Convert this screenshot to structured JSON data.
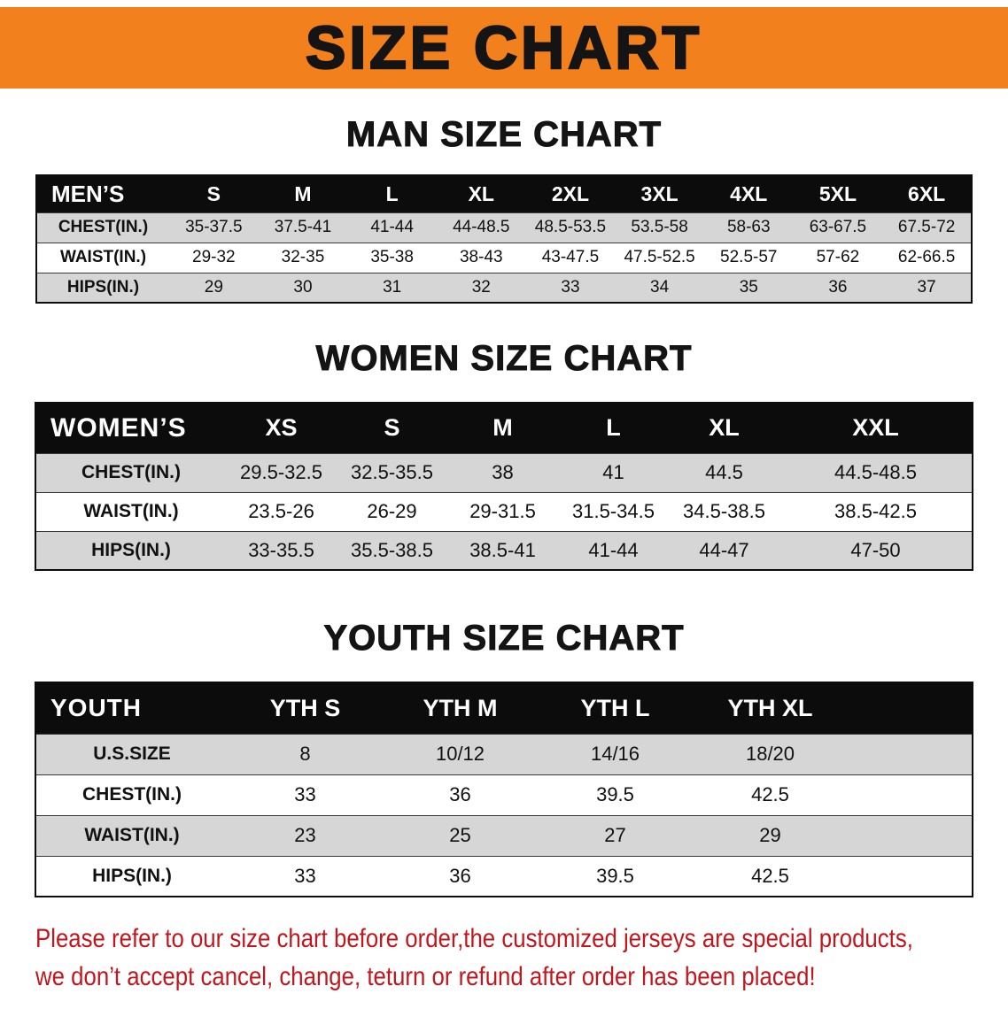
{
  "banner": {
    "title": "SIZE CHART"
  },
  "colors": {
    "banner_orange": "#f2801c",
    "table_header_black": "#0c0c0c",
    "row_gray": "#d6d6d6",
    "footer_red": "#c3161c"
  },
  "men": {
    "heading": "MAN SIZE CHART",
    "table": {
      "header": [
        "MEN’S",
        "S",
        "M",
        "L",
        "XL",
        "2XL",
        "3XL",
        "4XL",
        "5XL",
        "6XL"
      ],
      "rows": [
        [
          "CHEST(IN.)",
          "35-37.5",
          "37.5-41",
          "41-44",
          "44-48.5",
          "48.5-53.5",
          "53.5-58",
          "58-63",
          "63-67.5",
          "67.5-72"
        ],
        [
          "WAIST(IN.)",
          "29-32",
          "32-35",
          "35-38",
          "38-43",
          "43-47.5",
          "47.5-52.5",
          "52.5-57",
          "57-62",
          "62-66.5"
        ],
        [
          "HIPS(IN.)",
          "29",
          "30",
          "31",
          "32",
          "33",
          "34",
          "35",
          "36",
          "37"
        ]
      ]
    }
  },
  "women": {
    "heading": "WOMEN SIZE CHART",
    "table": {
      "header": [
        "WOMEN’S",
        "XS",
        "S",
        "M",
        "L",
        "XL",
        "XXL"
      ],
      "rows": [
        [
          "CHEST(IN.)",
          "29.5-32.5",
          "32.5-35.5",
          "38",
          "41",
          "44.5",
          "44.5-48.5"
        ],
        [
          "WAIST(IN.)",
          "23.5-26",
          "26-29",
          "29-31.5",
          "31.5-34.5",
          "34.5-38.5",
          "38.5-42.5"
        ],
        [
          "HIPS(IN.)",
          "33-35.5",
          "35.5-38.5",
          "38.5-41",
          "41-44",
          "44-47",
          "47-50"
        ]
      ]
    }
  },
  "youth": {
    "heading": "YOUTH SIZE CHART",
    "table": {
      "header": [
        "YOUTH",
        "YTH S",
        "YTH M",
        "YTH L",
        "YTH XL"
      ],
      "rows": [
        [
          "U.S.SIZE",
          "8",
          "10/12",
          "14/16",
          "18/20"
        ],
        [
          "CHEST(IN.)",
          "33",
          "36",
          "39.5",
          "42.5"
        ],
        [
          "WAIST(IN.)",
          "23",
          "25",
          "27",
          "29"
        ],
        [
          "HIPS(IN.)",
          "33",
          "36",
          "39.5",
          "42.5"
        ]
      ]
    }
  },
  "footer": {
    "line1": "Please refer to our size chart before order,the customized jerseys are special products,",
    "line2": "we don’t accept cancel, change, teturn or refund after order has been placed!"
  }
}
